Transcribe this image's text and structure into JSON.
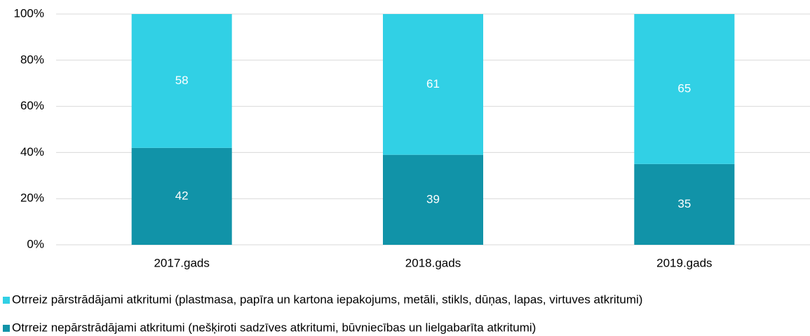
{
  "chart_data": {
    "type": "stacked_bar",
    "categories": [
      "2017.gads",
      "2018.gads",
      "2019.gads"
    ],
    "series": [
      {
        "name": "Otrreiz pārstrādājami atkritumi (plastmasa, papīra un kartona iepakojums, metāli, stikls, dūņas, lapas, virtuves atkritumi)",
        "color": "#31d0e5",
        "values": [
          58,
          61,
          65
        ]
      },
      {
        "name": "Otrreiz nepārstrādājami atkritumi (nešķiroti sadzīves atkritumi, būvniecības un lielgabarīta atkritumi)",
        "color": "#1193a8",
        "values": [
          42,
          39,
          35
        ]
      }
    ],
    "ylim": [
      0,
      100
    ],
    "yticks": [
      {
        "value": 0,
        "label": "0%"
      },
      {
        "value": 20,
        "label": "20%"
      },
      {
        "value": 40,
        "label": "40%"
      },
      {
        "value": 60,
        "label": "60%"
      },
      {
        "value": 80,
        "label": "80%"
      },
      {
        "value": 100,
        "label": "100%"
      }
    ],
    "grid": true,
    "legend": "bottom"
  }
}
